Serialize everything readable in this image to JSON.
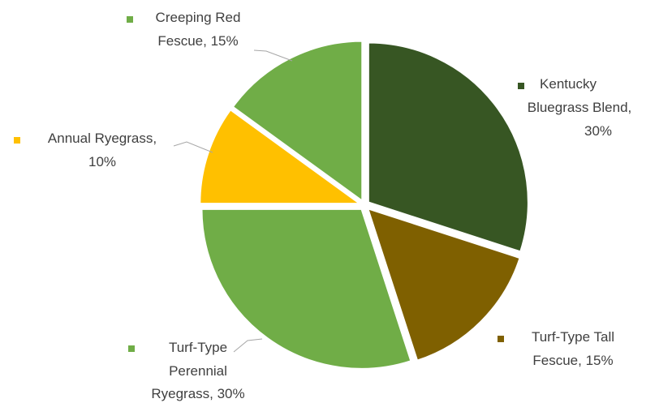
{
  "chart_data": {
    "type": "pie",
    "title": "",
    "slices": [
      {
        "label_lines": [
          "Kentucky",
          "Bluegrass Blend,",
          "30%"
        ],
        "name": "Kentucky Bluegrass Blend",
        "value": 30,
        "color": "#375623"
      },
      {
        "label_lines": [
          "Turf-Type Tall",
          "Fescue, 15%"
        ],
        "name": "Turf-Type Tall Fescue",
        "value": 15,
        "color": "#7F6000"
      },
      {
        "label_lines": [
          "Turf-Type",
          "Perennial",
          "Ryegrass, 30%"
        ],
        "name": "Turf-Type Perennial Ryegrass",
        "value": 30,
        "color": "#70AD47"
      },
      {
        "label_lines": [
          "Annual Ryegrass,",
          "10%"
        ],
        "name": "Annual Ryegrass",
        "value": 10,
        "color": "#FFC000"
      },
      {
        "label_lines": [
          "Creeping Red",
          "Fescue, 15%"
        ],
        "name": "Creeping Red Fescue",
        "value": 15,
        "color": "#70AD47"
      }
    ]
  }
}
